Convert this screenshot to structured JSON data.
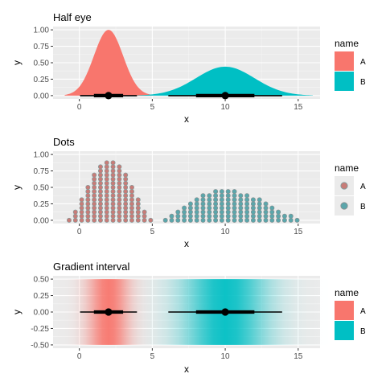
{
  "colors": {
    "A": "#F8766D",
    "B": "#00BFC4",
    "dotA": "#C77C78",
    "dotB": "#5BA6AB"
  },
  "chart_data": [
    {
      "type": "area",
      "subtype": "half-eye",
      "title": "Half eye",
      "xlabel": "x",
      "ylabel": "y",
      "xlim": [
        -1.8,
        16.5
      ],
      "ylim": [
        -0.05,
        1.05
      ],
      "xticks": [
        0,
        5,
        10,
        15
      ],
      "yticks": [
        "0.00",
        "0.25",
        "0.50",
        "0.75",
        "1.00"
      ],
      "legend": {
        "title": "name",
        "labels": [
          "A",
          "B"
        ],
        "position": "right"
      },
      "series": [
        {
          "name": "A",
          "mean": 2,
          "sd": 1,
          "density_peak": 1.0,
          "range": [
            -1,
            5
          ],
          "interval_66": [
            1.0,
            3.0
          ],
          "interval_95": [
            0.05,
            3.95
          ],
          "point": 2
        },
        {
          "name": "B",
          "mean": 10,
          "sd": 2,
          "density_peak": 0.44,
          "range": [
            4,
            16
          ],
          "interval_66": [
            8.0,
            12.0
          ],
          "interval_95": [
            6.1,
            13.9
          ],
          "point": 10
        }
      ]
    },
    {
      "type": "scatter",
      "subtype": "dots",
      "title": "Dots",
      "xlabel": "x",
      "ylabel": "y",
      "xlim": [
        -1.8,
        16.5
      ],
      "ylim": [
        -0.05,
        1.05
      ],
      "xticks": [
        0,
        5,
        10,
        15
      ],
      "yticks": [
        "0.00",
        "0.25",
        "0.50",
        "0.75",
        "1.00"
      ],
      "legend": {
        "title": "name",
        "labels": [
          "A",
          "B"
        ],
        "position": "right"
      },
      "series": [
        {
          "name": "A",
          "x_min": -0.7,
          "x_max": 4.9,
          "peak_x": 2.1,
          "peak_y": 0.88
        },
        {
          "name": "B",
          "x_min": 5.9,
          "x_max": 15.1,
          "peak_x": 9.8,
          "peak_y": 0.44
        }
      ]
    },
    {
      "type": "heatmap",
      "subtype": "gradient-interval",
      "title": "Gradient interval",
      "xlabel": "x",
      "ylabel": "y",
      "xlim": [
        -1.8,
        16.5
      ],
      "ylim": [
        -0.55,
        0.55
      ],
      "xticks": [
        0,
        5,
        10,
        15
      ],
      "yticks": [
        "0.50",
        "0.25",
        "0.00",
        "-0.25",
        "-0.50"
      ],
      "legend": {
        "title": "name",
        "labels": [
          "A",
          "B"
        ],
        "position": "right"
      },
      "series": [
        {
          "name": "A",
          "mean": 2,
          "sd": 1,
          "interval_66": [
            1.0,
            3.0
          ],
          "interval_95": [
            0.05,
            3.95
          ],
          "point": 2
        },
        {
          "name": "B",
          "mean": 10,
          "sd": 2,
          "interval_66": [
            8.0,
            12.0
          ],
          "interval_95": [
            6.1,
            13.9
          ],
          "point": 10
        }
      ]
    }
  ]
}
